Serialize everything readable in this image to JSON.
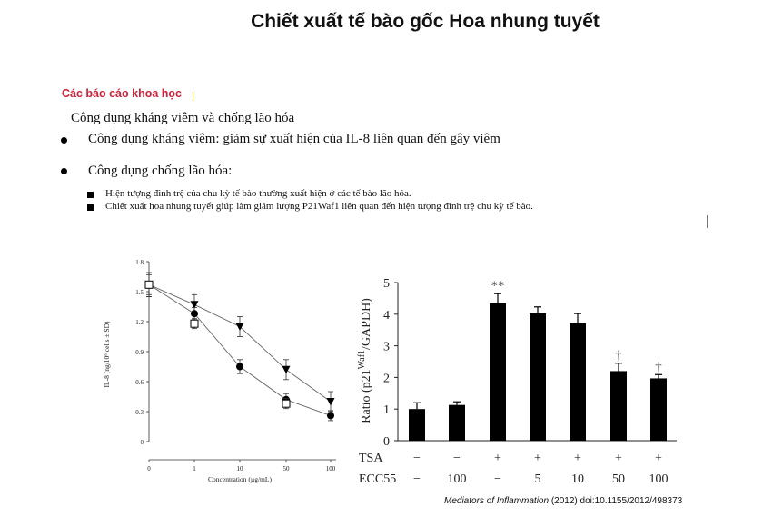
{
  "page": {
    "title": "Chiết xuất tế bào gốc Hoa nhung tuyết",
    "section_label": "Các báo cáo khoa học",
    "heading": "Công dụng kháng viêm và chống lão hóa",
    "bullets": [
      "Công dụng kháng viêm: giảm sự xuất hiện của IL-8 liên quan đến gây viêm",
      "Công dụng chống lão hóa:"
    ],
    "sub_bullets": [
      "Hiện tượng đình trệ của chu kỳ tế bào thường xuất hiện ở các tế bào lão hóa.",
      "Chiết xuất hoa nhung tuyết giúp làm giảm lượng P21Waf1 liên quan đến hiện tượng đình trệ chu kỳ tế bào."
    ],
    "caption_journal": "Mediators of Inflammation",
    "caption_rest": " (2012) doi:10.1155/2012/498373"
  },
  "chart_data": [
    {
      "type": "line",
      "ylabel": "IL-8 (ng/10⁶ cells ± SD)",
      "xlabel": "Concentration (µg/mL)",
      "categories": [
        "0",
        "1",
        "10",
        "50",
        "100"
      ],
      "yticks": [
        "0",
        "0.3",
        "0.6",
        "0.9",
        "1.2",
        "1.5",
        "1.8"
      ],
      "ylim": [
        0,
        1.8
      ],
      "series": [
        {
          "marker": "triangle-down",
          "values": [
            1.57,
            1.37,
            1.15,
            0.72,
            0.4
          ],
          "errors": [
            0.1,
            0.1,
            0.1,
            0.1,
            0.1
          ]
        },
        {
          "marker": "circle",
          "values": [
            1.57,
            1.28,
            0.75,
            0.42,
            0.26
          ],
          "errors": [
            0.12,
            0.06,
            0.07,
            0.06,
            0.05
          ]
        },
        {
          "marker": "square-open",
          "values": [
            1.57,
            1.18,
            null,
            0.38,
            null
          ],
          "errors": [
            0.12,
            0.05,
            null,
            0.05,
            null
          ]
        }
      ]
    },
    {
      "type": "bar",
      "ylabel": "Ratio (p21Waf1/GAPDH)",
      "ylim": [
        0,
        5
      ],
      "yticks": [
        "0",
        "1",
        "2",
        "3",
        "4",
        "5"
      ],
      "values": [
        1.0,
        1.13,
        4.35,
        4.03,
        3.72,
        2.2,
        1.97
      ],
      "errors": [
        0.2,
        0.1,
        0.3,
        0.2,
        0.3,
        0.25,
        0.12
      ],
      "annotations": [
        "",
        "",
        "**",
        "",
        "",
        "†",
        "†"
      ],
      "row_labels": [
        "TSA",
        "ECC55"
      ],
      "tsa": [
        "−",
        "−",
        "+",
        "+",
        "+",
        "+",
        "+"
      ],
      "ecc55": [
        "−",
        "100",
        "−",
        "5",
        "10",
        "50",
        "100"
      ]
    }
  ]
}
